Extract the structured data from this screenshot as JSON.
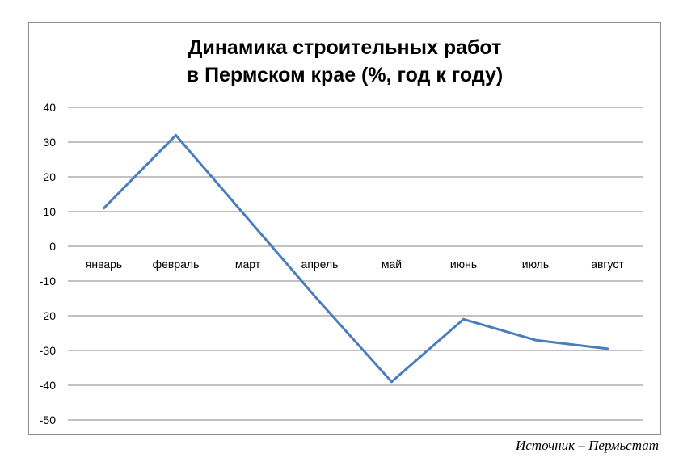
{
  "chart_data": {
    "type": "line",
    "title_lines": [
      "Динамика строительных работ",
      "в Пермском крае (%, год к году)"
    ],
    "categories": [
      "январь",
      "февраль",
      "март",
      "апрель",
      "май",
      "июнь",
      "июль",
      "август"
    ],
    "series": [
      {
        "values": [
          11,
          32,
          8,
          -16,
          -39,
          -21,
          -27,
          -29.5
        ]
      }
    ],
    "ylim": [
      -50,
      40
    ],
    "yticks": [
      40,
      30,
      20,
      10,
      0,
      -10,
      -20,
      -30,
      -40,
      -50
    ],
    "grid": true,
    "legend": "none",
    "line_color": "#4a7ebb"
  },
  "source_note": "Источник – Пермьстат"
}
